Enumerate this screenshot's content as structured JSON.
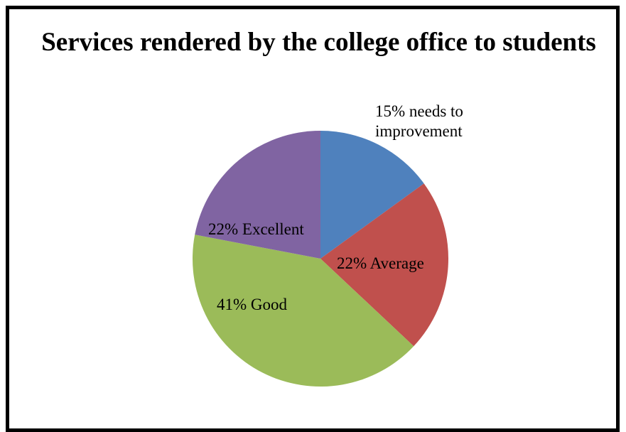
{
  "chart_data": {
    "type": "pie",
    "title": "Services rendered by the college office to students",
    "slices": [
      {
        "value": 15,
        "label_lines": [
          "15% needs to",
          "improvement"
        ],
        "color": "#4F81BD"
      },
      {
        "value": 22,
        "label_lines": [
          "22% Average"
        ],
        "color": "#C0504D"
      },
      {
        "value": 41,
        "label_lines": [
          "41% Good"
        ],
        "color": "#9BBB59"
      },
      {
        "value": 22,
        "label_lines": [
          "22% Excellent"
        ],
        "color": "#8064A2"
      }
    ],
    "start": "12 o'clock",
    "direction": "clockwise"
  }
}
